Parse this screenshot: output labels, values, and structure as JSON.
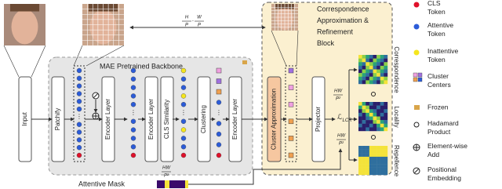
{
  "input_label": "Input",
  "backbone": {
    "title": "MAE Pretrained Backbone",
    "blocks": [
      "Patchify",
      "Encoder Layer",
      "Encoder Layer",
      "CLS Similarity",
      "Clustering",
      "Encoder Layer"
    ]
  },
  "block": {
    "title_lines": [
      "Correspondence",
      "Approximation &",
      "Refinement",
      "Block"
    ],
    "modules": [
      "Cluster Approximation",
      "Projector"
    ]
  },
  "loss": {
    "symbol": "ℒ",
    "subscript": "LCR"
  },
  "fractions": {
    "grid": [
      {
        "num": "H",
        "den": "P"
      },
      {
        "num": "W",
        "den": "P"
      }
    ],
    "separator": "·",
    "hw": {
      "num": "HW",
      "den": "P²"
    }
  },
  "matrices": [
    "Correspondence",
    "Locality",
    "Repellence"
  ],
  "mask_label": "Attentive Mask",
  "legend": [
    {
      "lines": [
        "CLS",
        "Token"
      ]
    },
    {
      "lines": [
        "Attentive",
        "Token"
      ]
    },
    {
      "lines": [
        "Inattentive",
        "Token"
      ]
    },
    {
      "lines": [
        "Cluster",
        "Centers"
      ]
    },
    {
      "lines": [
        "Frozen"
      ]
    },
    {
      "lines": [
        "Hadamard",
        "Product"
      ]
    },
    {
      "lines": [
        "Element-wise",
        "Add"
      ]
    },
    {
      "lines": [
        "Positional",
        "Embedding"
      ]
    }
  ]
}
